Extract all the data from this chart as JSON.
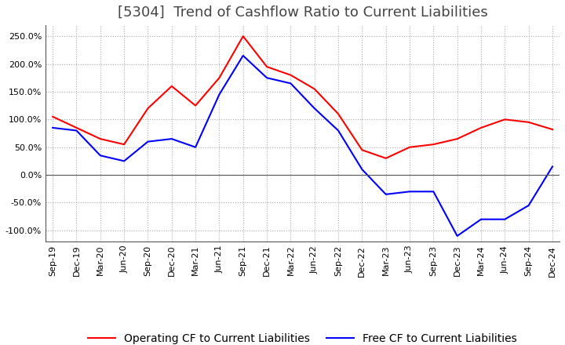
{
  "title": "[5304]  Trend of Cashflow Ratio to Current Liabilities",
  "x_labels": [
    "Sep-19",
    "Dec-19",
    "Mar-20",
    "Jun-20",
    "Sep-20",
    "Dec-20",
    "Mar-21",
    "Jun-21",
    "Sep-21",
    "Dec-21",
    "Mar-22",
    "Jun-22",
    "Sep-22",
    "Dec-22",
    "Mar-23",
    "Jun-23",
    "Sep-23",
    "Dec-23",
    "Mar-24",
    "Jun-24",
    "Sep-24",
    "Dec-24"
  ],
  "operating_cf": [
    105,
    85,
    65,
    55,
    120,
    160,
    125,
    175,
    250,
    195,
    180,
    155,
    110,
    45,
    30,
    50,
    55,
    65,
    85,
    100,
    95,
    82
  ],
  "free_cf": [
    85,
    80,
    35,
    25,
    60,
    65,
    50,
    145,
    215,
    175,
    165,
    120,
    80,
    10,
    -35,
    -30,
    -30,
    -110,
    -80,
    -80,
    -55,
    15
  ],
  "ylim": [
    -120,
    270
  ],
  "yticks": [
    -100,
    -50,
    0,
    50,
    100,
    150,
    200,
    250
  ],
  "operating_color": "#FF0000",
  "free_color": "#0000FF",
  "grid_color": "#AAAAAA",
  "bg_color": "#FFFFFF",
  "legend_op": "Operating CF to Current Liabilities",
  "legend_free": "Free CF to Current Liabilities",
  "title_fontsize": 13,
  "tick_fontsize": 8,
  "legend_fontsize": 10
}
